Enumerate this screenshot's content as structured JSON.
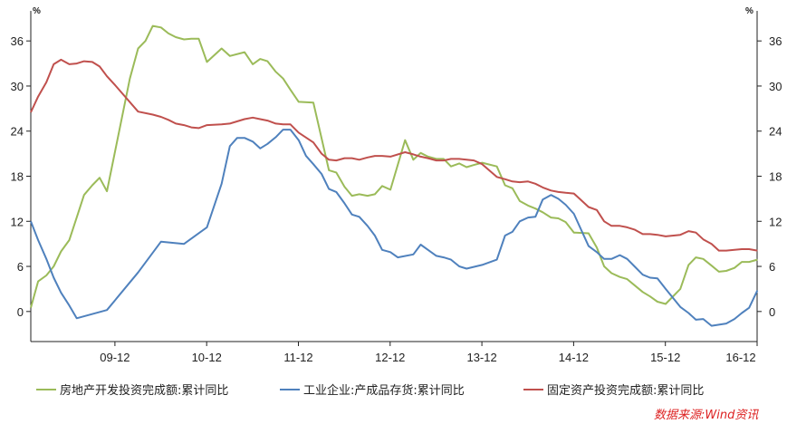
{
  "chart_data": {
    "type": "line",
    "unit_left": "%",
    "unit_right": "%",
    "ylim": [
      -4,
      40
    ],
    "y_ticks": [
      0,
      6,
      12,
      18,
      24,
      30,
      36
    ],
    "x_tick_labels": [
      "09-12",
      "10-12",
      "11-12",
      "12-12",
      "13-12",
      "14-12",
      "15-12",
      "16-12"
    ],
    "x_tick_positions": [
      2009.917,
      2010.917,
      2011.917,
      2012.917,
      2013.917,
      2014.917,
      2015.917,
      2016.917
    ],
    "xlim": [
      2009.0,
      2016.917
    ],
    "grid": false,
    "legend_position": "bottom",
    "source_note": "数据来源:Wind资讯",
    "series": [
      {
        "name": "房地产开发投资完成额:累计同比",
        "color": "#9bbb59",
        "points": [
          [
            2009.0,
            0.5
          ],
          [
            2009.08,
            4.0
          ],
          [
            2009.17,
            4.8
          ],
          [
            2009.25,
            6.0
          ],
          [
            2009.33,
            8.0
          ],
          [
            2009.42,
            9.5
          ],
          [
            2009.5,
            12.5
          ],
          [
            2009.58,
            15.5
          ],
          [
            2009.67,
            16.8
          ],
          [
            2009.75,
            17.8
          ],
          [
            2009.83,
            16.0
          ],
          [
            2010.08,
            31.0
          ],
          [
            2010.17,
            35.0
          ],
          [
            2010.25,
            36.0
          ],
          [
            2010.33,
            38.0
          ],
          [
            2010.42,
            37.8
          ],
          [
            2010.5,
            37.0
          ],
          [
            2010.58,
            36.5
          ],
          [
            2010.67,
            36.2
          ],
          [
            2010.75,
            36.3
          ],
          [
            2010.83,
            36.3
          ],
          [
            2010.92,
            33.2
          ],
          [
            2011.08,
            35.0
          ],
          [
            2011.17,
            34.0
          ],
          [
            2011.33,
            34.5
          ],
          [
            2011.42,
            32.9
          ],
          [
            2011.5,
            33.6
          ],
          [
            2011.58,
            33.3
          ],
          [
            2011.67,
            31.9
          ],
          [
            2011.75,
            31.0
          ],
          [
            2011.83,
            29.5
          ],
          [
            2011.92,
            27.9
          ],
          [
            2012.08,
            27.8
          ],
          [
            2012.25,
            18.8
          ],
          [
            2012.33,
            18.5
          ],
          [
            2012.42,
            16.6
          ],
          [
            2012.5,
            15.4
          ],
          [
            2012.58,
            15.6
          ],
          [
            2012.67,
            15.4
          ],
          [
            2012.75,
            15.6
          ],
          [
            2012.83,
            16.7
          ],
          [
            2012.92,
            16.2
          ],
          [
            2013.08,
            22.8
          ],
          [
            2013.17,
            20.2
          ],
          [
            2013.25,
            21.1
          ],
          [
            2013.33,
            20.6
          ],
          [
            2013.42,
            20.3
          ],
          [
            2013.5,
            20.3
          ],
          [
            2013.58,
            19.3
          ],
          [
            2013.67,
            19.7
          ],
          [
            2013.75,
            19.2
          ],
          [
            2013.83,
            19.5
          ],
          [
            2013.92,
            19.8
          ],
          [
            2014.08,
            19.3
          ],
          [
            2014.17,
            16.8
          ],
          [
            2014.25,
            16.4
          ],
          [
            2014.33,
            14.7
          ],
          [
            2014.42,
            14.1
          ],
          [
            2014.5,
            13.7
          ],
          [
            2014.58,
            13.2
          ],
          [
            2014.67,
            12.5
          ],
          [
            2014.75,
            12.4
          ],
          [
            2014.83,
            11.9
          ],
          [
            2014.92,
            10.5
          ],
          [
            2015.08,
            10.4
          ],
          [
            2015.17,
            8.5
          ],
          [
            2015.25,
            6.0
          ],
          [
            2015.33,
            5.1
          ],
          [
            2015.42,
            4.6
          ],
          [
            2015.5,
            4.3
          ],
          [
            2015.58,
            3.5
          ],
          [
            2015.67,
            2.6
          ],
          [
            2015.75,
            2.0
          ],
          [
            2015.83,
            1.3
          ],
          [
            2015.92,
            1.0
          ],
          [
            2016.08,
            3.0
          ],
          [
            2016.17,
            6.2
          ],
          [
            2016.25,
            7.2
          ],
          [
            2016.33,
            7.0
          ],
          [
            2016.42,
            6.1
          ],
          [
            2016.5,
            5.3
          ],
          [
            2016.58,
            5.4
          ],
          [
            2016.67,
            5.8
          ],
          [
            2016.75,
            6.6
          ],
          [
            2016.83,
            6.6
          ],
          [
            2016.92,
            6.9
          ]
        ]
      },
      {
        "name": "工业企业:产成品存货:累计同比",
        "color": "#4f81bd",
        "points": [
          [
            2009.0,
            12.0
          ],
          [
            2009.08,
            9.5
          ],
          [
            2009.17,
            7.0
          ],
          [
            2009.25,
            4.5
          ],
          [
            2009.33,
            2.5
          ],
          [
            2009.42,
            0.8
          ],
          [
            2009.5,
            -0.9
          ],
          [
            2009.83,
            0.2
          ],
          [
            2010.17,
            5.2
          ],
          [
            2010.42,
            9.3
          ],
          [
            2010.67,
            9.0
          ],
          [
            2010.92,
            11.2
          ],
          [
            2011.08,
            17.0
          ],
          [
            2011.17,
            22.0
          ],
          [
            2011.25,
            23.1
          ],
          [
            2011.33,
            23.1
          ],
          [
            2011.42,
            22.6
          ],
          [
            2011.5,
            21.7
          ],
          [
            2011.58,
            22.3
          ],
          [
            2011.67,
            23.2
          ],
          [
            2011.75,
            24.2
          ],
          [
            2011.83,
            24.2
          ],
          [
            2011.92,
            22.8
          ],
          [
            2012.0,
            20.7
          ],
          [
            2012.08,
            19.6
          ],
          [
            2012.17,
            18.3
          ],
          [
            2012.25,
            16.3
          ],
          [
            2012.33,
            15.9
          ],
          [
            2012.42,
            14.4
          ],
          [
            2012.5,
            12.9
          ],
          [
            2012.58,
            12.6
          ],
          [
            2012.67,
            11.4
          ],
          [
            2012.75,
            10.1
          ],
          [
            2012.83,
            8.2
          ],
          [
            2012.92,
            7.9
          ],
          [
            2013.0,
            7.2
          ],
          [
            2013.17,
            7.6
          ],
          [
            2013.25,
            8.9
          ],
          [
            2013.33,
            8.2
          ],
          [
            2013.42,
            7.4
          ],
          [
            2013.5,
            7.2
          ],
          [
            2013.58,
            6.9
          ],
          [
            2013.67,
            6.0
          ],
          [
            2013.75,
            5.7
          ],
          [
            2013.92,
            6.2
          ],
          [
            2014.08,
            6.9
          ],
          [
            2014.17,
            10.1
          ],
          [
            2014.25,
            10.6
          ],
          [
            2014.33,
            12.0
          ],
          [
            2014.42,
            12.5
          ],
          [
            2014.5,
            12.6
          ],
          [
            2014.58,
            14.9
          ],
          [
            2014.67,
            15.5
          ],
          [
            2014.75,
            15.0
          ],
          [
            2014.83,
            14.2
          ],
          [
            2014.92,
            13.0
          ],
          [
            2015.08,
            8.7
          ],
          [
            2015.17,
            7.9
          ],
          [
            2015.25,
            7.0
          ],
          [
            2015.33,
            7.0
          ],
          [
            2015.42,
            7.5
          ],
          [
            2015.5,
            7.0
          ],
          [
            2015.58,
            6.0
          ],
          [
            2015.67,
            4.9
          ],
          [
            2015.75,
            4.5
          ],
          [
            2015.83,
            4.4
          ],
          [
            2015.92,
            3.0
          ],
          [
            2016.08,
            0.6
          ],
          [
            2016.17,
            -0.2
          ],
          [
            2016.25,
            -1.1
          ],
          [
            2016.33,
            -1.0
          ],
          [
            2016.42,
            -1.9
          ],
          [
            2016.58,
            -1.6
          ],
          [
            2016.67,
            -1.0
          ],
          [
            2016.75,
            -0.2
          ],
          [
            2016.83,
            0.5
          ],
          [
            2016.92,
            2.8
          ]
        ]
      },
      {
        "name": "固定资产投资完成额:累计同比",
        "color": "#c0504d",
        "points": [
          [
            2009.0,
            26.5
          ],
          [
            2009.08,
            28.6
          ],
          [
            2009.17,
            30.5
          ],
          [
            2009.25,
            32.9
          ],
          [
            2009.33,
            33.5
          ],
          [
            2009.42,
            32.9
          ],
          [
            2009.5,
            33.0
          ],
          [
            2009.58,
            33.3
          ],
          [
            2009.67,
            33.2
          ],
          [
            2009.75,
            32.6
          ],
          [
            2009.83,
            31.3
          ],
          [
            2009.92,
            30.1
          ],
          [
            2010.17,
            26.6
          ],
          [
            2010.33,
            26.2
          ],
          [
            2010.42,
            25.9
          ],
          [
            2010.5,
            25.5
          ],
          [
            2010.58,
            25.0
          ],
          [
            2010.67,
            24.8
          ],
          [
            2010.75,
            24.5
          ],
          [
            2010.83,
            24.4
          ],
          [
            2010.92,
            24.8
          ],
          [
            2011.08,
            24.9
          ],
          [
            2011.17,
            25.0
          ],
          [
            2011.33,
            25.6
          ],
          [
            2011.42,
            25.8
          ],
          [
            2011.5,
            25.6
          ],
          [
            2011.58,
            25.4
          ],
          [
            2011.67,
            25.0
          ],
          [
            2011.75,
            24.9
          ],
          [
            2011.83,
            24.9
          ],
          [
            2011.92,
            23.8
          ],
          [
            2012.08,
            22.5
          ],
          [
            2012.17,
            21.0
          ],
          [
            2012.25,
            20.2
          ],
          [
            2012.33,
            20.1
          ],
          [
            2012.42,
            20.4
          ],
          [
            2012.5,
            20.4
          ],
          [
            2012.58,
            20.2
          ],
          [
            2012.67,
            20.5
          ],
          [
            2012.75,
            20.7
          ],
          [
            2012.83,
            20.7
          ],
          [
            2012.92,
            20.6
          ],
          [
            2013.08,
            21.2
          ],
          [
            2013.17,
            20.9
          ],
          [
            2013.25,
            20.6
          ],
          [
            2013.33,
            20.4
          ],
          [
            2013.42,
            20.1
          ],
          [
            2013.5,
            20.1
          ],
          [
            2013.58,
            20.3
          ],
          [
            2013.67,
            20.3
          ],
          [
            2013.75,
            20.2
          ],
          [
            2013.83,
            20.1
          ],
          [
            2013.92,
            19.6
          ],
          [
            2014.08,
            17.9
          ],
          [
            2014.17,
            17.6
          ],
          [
            2014.25,
            17.3
          ],
          [
            2014.33,
            17.2
          ],
          [
            2014.42,
            17.3
          ],
          [
            2014.5,
            17.0
          ],
          [
            2014.58,
            16.5
          ],
          [
            2014.67,
            16.1
          ],
          [
            2014.75,
            15.9
          ],
          [
            2014.83,
            15.8
          ],
          [
            2014.92,
            15.7
          ],
          [
            2015.08,
            13.9
          ],
          [
            2015.17,
            13.5
          ],
          [
            2015.25,
            12.0
          ],
          [
            2015.33,
            11.4
          ],
          [
            2015.42,
            11.4
          ],
          [
            2015.5,
            11.2
          ],
          [
            2015.58,
            10.9
          ],
          [
            2015.67,
            10.3
          ],
          [
            2015.75,
            10.3
          ],
          [
            2015.83,
            10.2
          ],
          [
            2015.92,
            10.0
          ],
          [
            2016.08,
            10.2
          ],
          [
            2016.17,
            10.7
          ],
          [
            2016.25,
            10.5
          ],
          [
            2016.33,
            9.6
          ],
          [
            2016.42,
            9.0
          ],
          [
            2016.5,
            8.1
          ],
          [
            2016.58,
            8.1
          ],
          [
            2016.67,
            8.2
          ],
          [
            2016.75,
            8.3
          ],
          [
            2016.83,
            8.3
          ],
          [
            2016.92,
            8.1
          ]
        ]
      }
    ]
  }
}
